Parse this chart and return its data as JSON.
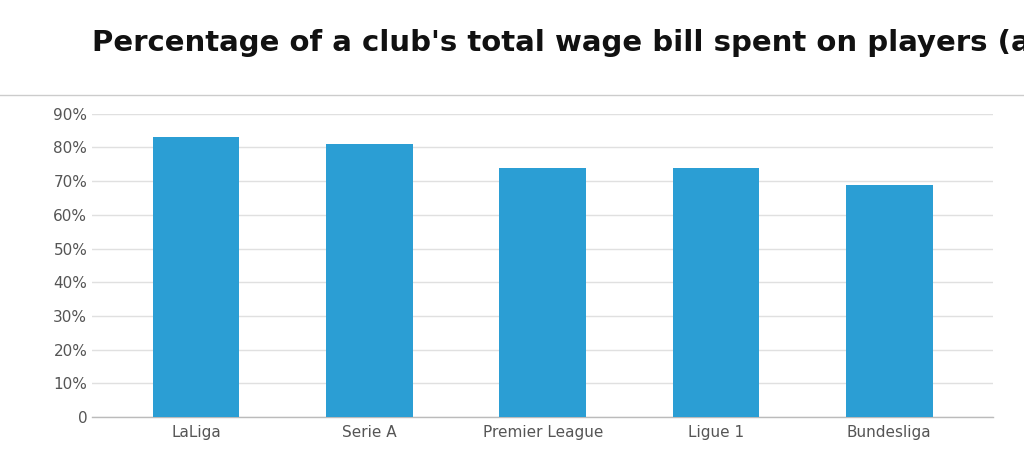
{
  "title": "Percentage of a club's total wage bill spent on players (all levels)",
  "categories": [
    "LaLiga",
    "Serie A",
    "Premier League",
    "Ligue 1",
    "Bundesliga"
  ],
  "values": [
    83,
    81,
    74,
    74,
    69
  ],
  "bar_color": "#2B9ED4",
  "background_color": "#ffffff",
  "ylim": [
    0,
    90
  ],
  "yticks": [
    0,
    10,
    20,
    30,
    40,
    50,
    60,
    70,
    80,
    90
  ],
  "ytick_labels": [
    "0",
    "10%",
    "20%",
    "30%",
    "40%",
    "50%",
    "60%",
    "70%",
    "80%",
    "90%"
  ],
  "title_fontsize": 21,
  "xtick_fontsize": 11,
  "ytick_fontsize": 11,
  "bar_width": 0.5,
  "grid_color": "#e0e0e0",
  "title_color": "#111111",
  "tick_color": "#555555",
  "separator_color": "#cccccc"
}
